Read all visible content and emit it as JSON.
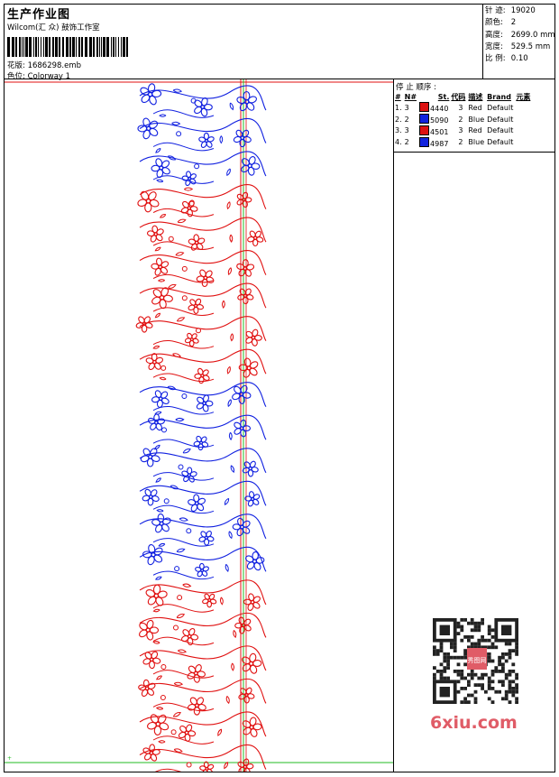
{
  "header": {
    "title": "生产作业图",
    "company": "Wilcom(汇 众) 鼓饰工作室",
    "design_label": "花版:",
    "design_file": "1686298.emb",
    "colorway_label": "色位:",
    "colorway_value": "Colorway 1"
  },
  "stats": {
    "stitches_label": "针 迹:",
    "stitches": "19020",
    "colors_label": "颜色:",
    "colors": "2",
    "height_label": "高度:",
    "height": "2699.0 mm",
    "width_label": "宽度:",
    "width": "529.5 mm",
    "scale_label": "比 例:",
    "scale": "0.10"
  },
  "sequence": {
    "title": "停 止 顺序 :",
    "columns": [
      "#",
      "N#",
      "St.",
      "代码",
      "描述",
      "Brand",
      "元素"
    ],
    "rows": [
      {
        "idx": "1.",
        "n": "3",
        "code": "4440",
        "stops": "3",
        "desc": "Red",
        "brand": "Default",
        "color": "#dd1111"
      },
      {
        "idx": "2.",
        "n": "2",
        "code": "5090",
        "stops": "2",
        "desc": "Blue",
        "brand": "Default",
        "color": "#1122dd"
      },
      {
        "idx": "3.",
        "n": "3",
        "code": "4501",
        "stops": "3",
        "desc": "Red",
        "brand": "Default",
        "color": "#dd1111"
      },
      {
        "idx": "4.",
        "n": "2",
        "code": "4987",
        "stops": "2",
        "desc": "Blue",
        "brand": "Default",
        "color": "#1122dd"
      }
    ]
  },
  "design_colors": {
    "red": "#e01010",
    "blue": "#1020e0",
    "guide_red": "#e01010",
    "guide_green": "#22bb22"
  },
  "design_bands": [
    "blue",
    "red",
    "red",
    "blue",
    "blue",
    "red",
    "red"
  ],
  "watermark": {
    "site": "6xiu.com",
    "stamp": "秀图网",
    "stamp_color": "#e05c67"
  }
}
